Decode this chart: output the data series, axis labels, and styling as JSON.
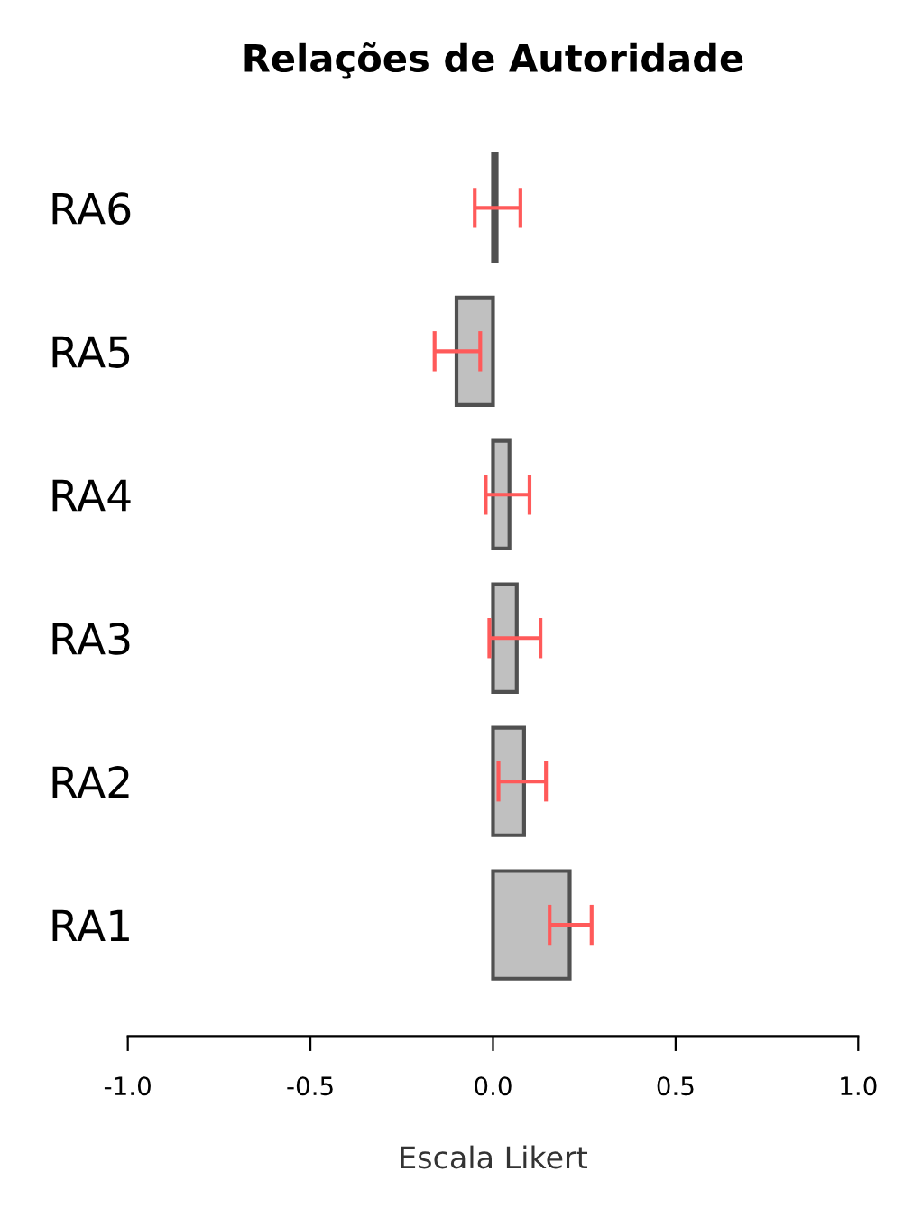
{
  "chart_data": {
    "type": "bar",
    "orientation": "horizontal",
    "title": "Relações de Autoridade",
    "xlabel": "Escala Likert",
    "categories": [
      "RA6",
      "RA5",
      "RA4",
      "RA3",
      "RA2",
      "RA1"
    ],
    "values": [
      0.01,
      -0.1,
      0.045,
      0.065,
      0.085,
      0.21
    ],
    "errors": [
      [
        -0.05,
        0.075
      ],
      [
        -0.16,
        -0.035
      ],
      [
        -0.02,
        0.1
      ],
      [
        -0.01,
        0.13
      ],
      [
        0.015,
        0.145
      ],
      [
        0.155,
        0.27
      ]
    ],
    "color": "#c0c0c0",
    "xlim": [
      -1.0,
      1.0
    ],
    "xticks": [
      {
        "value": -1.0,
        "label": "-1.0"
      },
      {
        "value": -0.5,
        "label": "-0.5"
      },
      {
        "value": 0.0,
        "label": "0.0"
      },
      {
        "value": 0.5,
        "label": "0.5"
      },
      {
        "value": 1.0,
        "label": "1.0"
      }
    ],
    "grid": false,
    "legend": false
  }
}
